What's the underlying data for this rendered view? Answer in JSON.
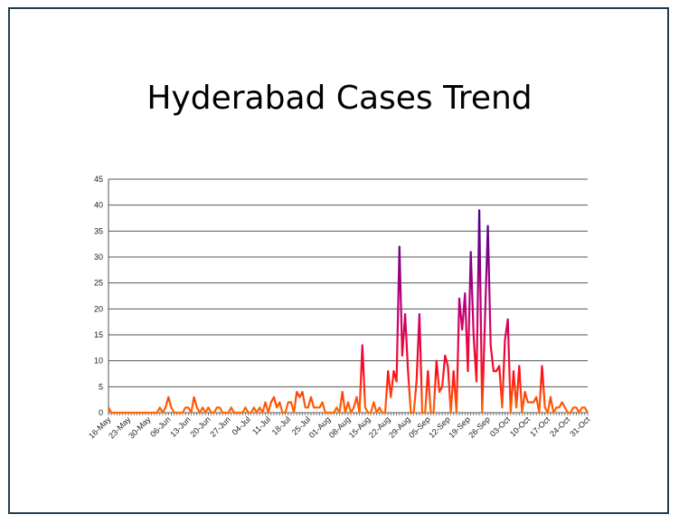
{
  "chart_data": {
    "type": "line",
    "title": "Hyderabad Cases Trend",
    "xlabel": "",
    "ylabel": "",
    "ylim": [
      0,
      45
    ],
    "yticks": [
      0,
      5,
      10,
      15,
      20,
      25,
      30,
      35,
      40,
      45
    ],
    "grid": true,
    "legend": "none",
    "start_date": "16-May",
    "xtick_labels": [
      "16-May",
      "23-May",
      "30-May",
      "06-Jun",
      "13-Jun",
      "20-Jun",
      "27-Jun",
      "04-Jul",
      "11-Jul",
      "18-Jul",
      "25-Jul",
      "01-Aug",
      "08-Aug",
      "15-Aug",
      "22-Aug",
      "29-Aug",
      "05-Sep",
      "12-Sep",
      "19-Sep",
      "26-Sep",
      "03-Oct",
      "10-Oct",
      "17-Oct",
      "24-Oct",
      "31-Oct"
    ],
    "xtick_step_days": 7,
    "series": [
      {
        "name": "Cases",
        "values": [
          1,
          0,
          0,
          0,
          0,
          0,
          0,
          0,
          0,
          0,
          0,
          0,
          0,
          0,
          0,
          0,
          0,
          0,
          1,
          0,
          1,
          3,
          1,
          0,
          0,
          0,
          0,
          1,
          1,
          0,
          3,
          1,
          0,
          1,
          0,
          1,
          0,
          0,
          1,
          1,
          0,
          0,
          0,
          1,
          0,
          0,
          0,
          0,
          1,
          0,
          0,
          1,
          0,
          1,
          0,
          2,
          0,
          2,
          3,
          1,
          2,
          0,
          0,
          2,
          2,
          0,
          4,
          3,
          4,
          1,
          1,
          3,
          1,
          1,
          1,
          2,
          0,
          0,
          0,
          0,
          1,
          0,
          4,
          0,
          2,
          0,
          1,
          3,
          0,
          13,
          1,
          0,
          0,
          2,
          0,
          1,
          0,
          0,
          8,
          3,
          8,
          6,
          32,
          11,
          19,
          8,
          0,
          0,
          6,
          19,
          0,
          0,
          8,
          0,
          0,
          10,
          4,
          5,
          11,
          9,
          0,
          8,
          0,
          22,
          16,
          23,
          8,
          31,
          15,
          6,
          39,
          0,
          18,
          36,
          13,
          8,
          8,
          9,
          1,
          14,
          18,
          0,
          8,
          1,
          9,
          0,
          4,
          2,
          2,
          2,
          3,
          0,
          9,
          1,
          0,
          3,
          0,
          1,
          1,
          2,
          1,
          0,
          0,
          1,
          1,
          0,
          1,
          1,
          0
        ]
      }
    ],
    "colors": {
      "low": "#ff6a00",
      "mid": "#ff0a1e",
      "high": "#c0007a",
      "peak": "#3a0096",
      "grid": "#555555",
      "frame": "#1f3f4f"
    }
  }
}
